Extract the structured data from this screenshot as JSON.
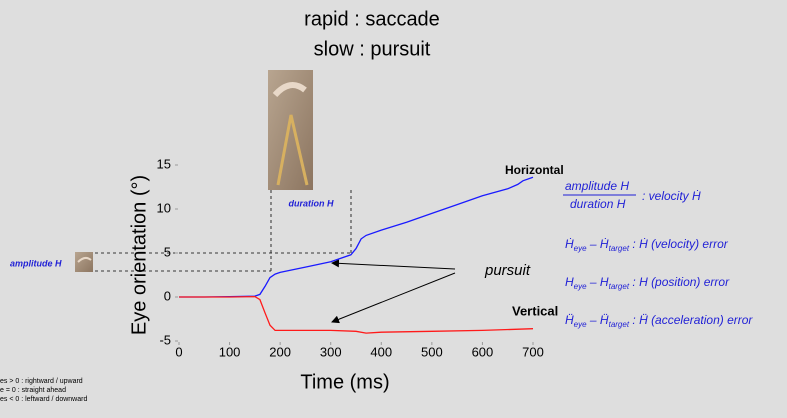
{
  "chart_data": {
    "type": "line",
    "title": "rapid : saccade",
    "subtitle": "slow : pursuit",
    "x_label": "Time (ms)",
    "y_label": "Eye orientation (°)",
    "xlim": [
      0,
      700
    ],
    "xticks": [
      0,
      100,
      200,
      300,
      400,
      500,
      600,
      700
    ],
    "ylim": [
      -5,
      15
    ],
    "yticks": [
      -5,
      0,
      5,
      10,
      15
    ],
    "series": [
      {
        "name": "Horizontal",
        "color": "#1a1aff",
        "x": [
          0,
          50,
          100,
          150,
          160,
          170,
          180,
          190,
          200,
          250,
          300,
          340,
          350,
          360,
          370,
          400,
          450,
          500,
          550,
          600,
          650,
          670,
          680,
          700
        ],
        "values": [
          0,
          0,
          0.05,
          0.1,
          0.3,
          1.2,
          2.2,
          2.6,
          2.8,
          3.4,
          4,
          4.8,
          5.5,
          6.6,
          7,
          7.6,
          8.5,
          9.5,
          10.5,
          11.5,
          12.3,
          12.8,
          13.2,
          13.6
        ]
      },
      {
        "name": "Vertical",
        "color": "#ff1a1a",
        "x": [
          0,
          100,
          150,
          160,
          170,
          180,
          190,
          250,
          300,
          350,
          370,
          400,
          500,
          600,
          700
        ],
        "values": [
          0,
          0,
          0.05,
          -0.3,
          -1.8,
          -3.2,
          -3.8,
          -3.8,
          -3.8,
          -3.9,
          -4.1,
          -4,
          -3.9,
          -3.8,
          -3.6
        ]
      }
    ],
    "annotations": {
      "pursuit": "pursuit",
      "duration": "duration H",
      "amplitude": "amplitude H"
    },
    "fraction": {
      "numerator": "amplitude H",
      "denominator": "duration H",
      "rhs": ": velocity Ḣ"
    },
    "equations": [
      {
        "a": "Ḣ",
        "a_sub": "eye",
        "minus": " – ",
        "b": "Ḣ",
        "b_sub": "target",
        "rhs": " : Ḣ (velocity) error"
      },
      {
        "a": "H",
        "a_sub": "eye",
        "minus": " – ",
        "b": "H",
        "b_sub": "target",
        "rhs": " : H (position) error"
      },
      {
        "a": "Ḧ",
        "a_sub": "eye",
        "minus": " – ",
        "b": "Ḧ",
        "b_sub": "target",
        "rhs": " : Ḧ (acceleration) error"
      }
    ],
    "legend_notes": [
      "es > 0 : rightward / upward",
      "e = 0 : straight ahead",
      "es < 0 : leftward / downward"
    ]
  }
}
